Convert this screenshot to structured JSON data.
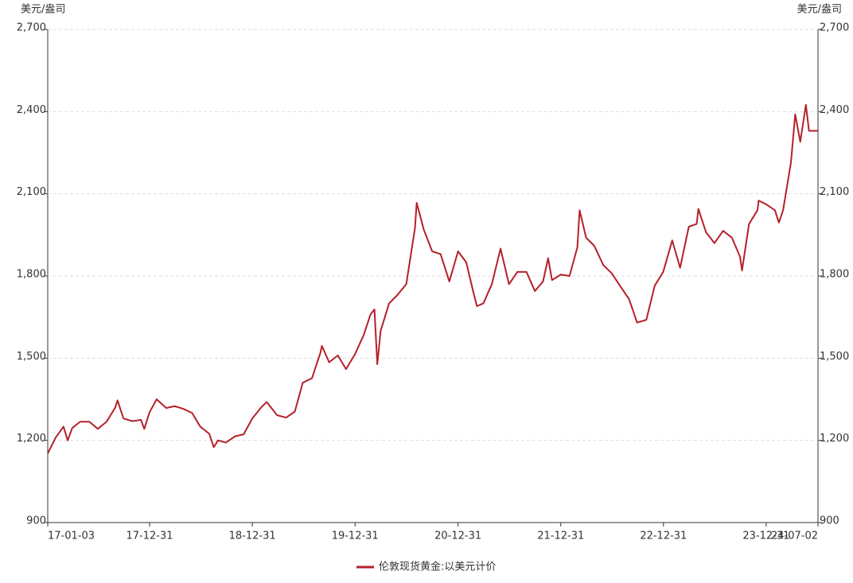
{
  "chart_data": {
    "type": "line",
    "y_unit": "美元/盎司",
    "y2_unit": "美元/盎司",
    "x": [
      "17-01-03",
      "17-01-31",
      "17-02-28",
      "17-03-15",
      "17-03-31",
      "17-04-28",
      "17-05-31",
      "17-06-30",
      "17-07-31",
      "17-08-31",
      "17-09-08",
      "17-09-29",
      "17-10-31",
      "17-11-30",
      "17-12-12",
      "17-12-31",
      "18-01-25",
      "18-02-28",
      "18-03-30",
      "18-04-30",
      "18-05-31",
      "18-06-29",
      "18-07-31",
      "18-08-16",
      "18-08-31",
      "18-09-28",
      "18-10-31",
      "18-11-30",
      "18-12-31",
      "19-01-31",
      "19-02-20",
      "19-03-29",
      "19-04-30",
      "19-05-31",
      "19-06-28",
      "19-07-31",
      "19-08-30",
      "19-09-04",
      "19-09-30",
      "19-10-31",
      "19-11-29",
      "19-12-31",
      "20-01-31",
      "20-02-24",
      "20-03-09",
      "20-03-19",
      "20-03-31",
      "20-04-30",
      "20-05-29",
      "20-06-30",
      "20-07-31",
      "20-08-06",
      "20-08-31",
      "20-09-30",
      "20-10-30",
      "20-11-30",
      "20-12-31",
      "21-01-29",
      "21-02-26",
      "21-03-08",
      "21-03-31",
      "21-04-30",
      "21-05-31",
      "21-06-30",
      "21-07-30",
      "21-08-31",
      "21-09-30",
      "21-10-29",
      "21-11-16",
      "21-11-30",
      "21-12-31",
      "22-01-31",
      "22-02-28",
      "22-03-08",
      "22-03-31",
      "22-04-29",
      "22-05-31",
      "22-06-30",
      "22-07-29",
      "22-08-31",
      "22-09-28",
      "22-10-31",
      "22-11-30",
      "22-12-30",
      "23-01-31",
      "23-02-28",
      "23-03-31",
      "23-04-28",
      "23-05-04",
      "23-05-31",
      "23-06-30",
      "23-07-31",
      "23-08-31",
      "23-09-29",
      "23-10-06",
      "23-10-31",
      "23-11-30",
      "23-12-04",
      "23-12-29",
      "24-01-31",
      "24-02-14",
      "24-02-29",
      "24-03-28",
      "24-04-12",
      "24-04-30",
      "24-05-20",
      "24-05-31",
      "24-06-28",
      "24-07-02"
    ],
    "series": [
      {
        "name": "伦敦现货黄金:以美元计价",
        "color": "#b5202a",
        "values": [
          1152,
          1210,
          1250,
          1200,
          1245,
          1268,
          1268,
          1242,
          1268,
          1320,
          1346,
          1280,
          1270,
          1275,
          1242,
          1303,
          1350,
          1318,
          1325,
          1315,
          1300,
          1250,
          1224,
          1175,
          1200,
          1192,
          1215,
          1222,
          1280,
          1320,
          1340,
          1292,
          1283,
          1305,
          1410,
          1427,
          1520,
          1545,
          1485,
          1510,
          1460,
          1515,
          1585,
          1660,
          1678,
          1478,
          1600,
          1700,
          1730,
          1770,
          1975,
          2067,
          1970,
          1890,
          1880,
          1780,
          1890,
          1850,
          1730,
          1690,
          1700,
          1770,
          1900,
          1770,
          1815,
          1815,
          1745,
          1780,
          1865,
          1785,
          1805,
          1800,
          1905,
          2040,
          1940,
          1910,
          1840,
          1810,
          1765,
          1715,
          1630,
          1640,
          1765,
          1815,
          1930,
          1830,
          1980,
          1990,
          2045,
          1960,
          1920,
          1965,
          1940,
          1870,
          1820,
          1990,
          2040,
          2075,
          2063,
          2040,
          1995,
          2040,
          2215,
          2390,
          2290,
          2425,
          2330,
          2330,
          2330
        ]
      }
    ],
    "xlim": [
      "17-01-03",
      "24-07-02"
    ],
    "xticks": [
      "17-01-03",
      "17-12-31",
      "18-12-31",
      "19-12-31",
      "20-12-31",
      "21-12-31",
      "22-12-31",
      "23-12-31",
      "24-07-02"
    ],
    "ylim": [
      900,
      2700
    ],
    "yticks": [
      {
        "value": 900,
        "label": "900"
      },
      {
        "value": 1200,
        "label": "1,200"
      },
      {
        "value": 1500,
        "label": "1,500"
      },
      {
        "value": 1800,
        "label": "1,800"
      },
      {
        "value": 2100,
        "label": "2,100"
      },
      {
        "value": 2400,
        "label": "2,400"
      },
      {
        "value": 2700,
        "label": "2,700"
      }
    ],
    "y2lim": [
      900,
      2700
    ],
    "y2ticks": [
      {
        "value": 900,
        "label": "900"
      },
      {
        "value": 1200,
        "label": "1,200"
      },
      {
        "value": 1500,
        "label": "1,500"
      },
      {
        "value": 1800,
        "label": "1,800"
      },
      {
        "value": 2100,
        "label": "2,100"
      },
      {
        "value": 2400,
        "label": "2,400"
      },
      {
        "value": 2700,
        "label": "2,700"
      }
    ],
    "grid": true,
    "legend": "bottom"
  }
}
